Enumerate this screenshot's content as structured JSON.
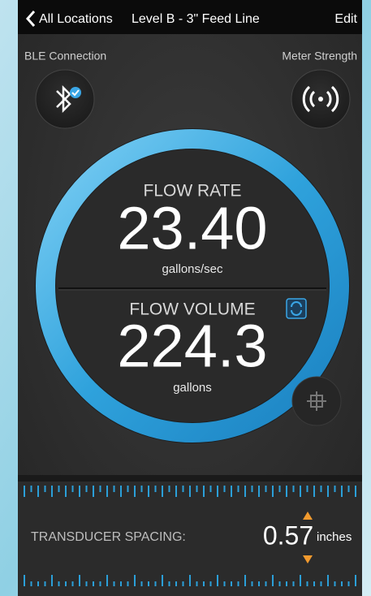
{
  "header": {
    "back_label": "All Locations",
    "title": "Level B - 3\" Feed Line",
    "action": "Edit"
  },
  "status": {
    "ble_label": "BLE Connection",
    "meter_label": "Meter Strength"
  },
  "gauge": {
    "flow_rate": {
      "label": "FLOW RATE",
      "value": "23.40",
      "unit": "gallons/sec"
    },
    "flow_volume": {
      "label": "FLOW VOLUME",
      "value": "224.3",
      "unit": "gallons"
    }
  },
  "spacing": {
    "label": "TRANSDUCER SPACING:",
    "value": "0.57",
    "unit": "inches"
  }
}
